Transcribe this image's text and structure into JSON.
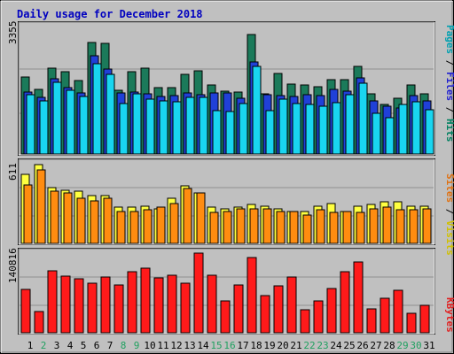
{
  "chart_data": [
    {
      "type": "bar",
      "title": "Daily usage for December 2018",
      "categories": [
        "1",
        "2",
        "3",
        "4",
        "5",
        "6",
        "7",
        "8",
        "9",
        "10",
        "11",
        "12",
        "13",
        "14",
        "15",
        "16",
        "17",
        "18",
        "19",
        "20",
        "21",
        "22",
        "23",
        "24",
        "25",
        "26",
        "27",
        "28",
        "29",
        "30",
        "31"
      ],
      "ylabel_max": "3355",
      "ylim": [
        0,
        3355
      ],
      "grid": true,
      "legend_right": [
        {
          "text": "Pages",
          "color": "#00a0b0"
        },
        {
          "text": " / ",
          "color": "#000000"
        },
        {
          "text": "Files",
          "color": "#2020d0"
        },
        {
          "text": " / ",
          "color": "#000000"
        },
        {
          "text": "Hits",
          "color": "#008060"
        }
      ],
      "series": [
        {
          "name": "Hits",
          "color": "#1b7a5a",
          "values": [
            1990,
            1670,
            2240,
            2140,
            1900,
            2900,
            2880,
            1660,
            2130,
            2240,
            1720,
            1730,
            2070,
            2150,
            1800,
            1640,
            1600,
            3110,
            1560,
            2090,
            1820,
            1790,
            1740,
            1920,
            1920,
            2280,
            1570,
            1280,
            1450,
            1790,
            1560
          ]
        },
        {
          "name": "Files",
          "color": "#2040d8",
          "values": [
            1620,
            1480,
            1960,
            1730,
            1580,
            2540,
            2210,
            1590,
            1620,
            1560,
            1500,
            1510,
            1580,
            1530,
            1580,
            1580,
            1440,
            2390,
            1550,
            1520,
            1500,
            1540,
            1510,
            1670,
            1640,
            1980,
            1390,
            1240,
            1200,
            1520,
            1380
          ]
        },
        {
          "name": "Pages",
          "color": "#19d5f0",
          "values": [
            1550,
            1380,
            1870,
            1650,
            1490,
            2340,
            2070,
            1320,
            1560,
            1430,
            1390,
            1350,
            1480,
            1470,
            1120,
            1100,
            1320,
            2270,
            1120,
            1420,
            1320,
            1290,
            1240,
            1330,
            1540,
            1840,
            1060,
            940,
            1280,
            1350,
            1140
          ]
        }
      ]
    },
    {
      "type": "bar",
      "categories": [
        "1",
        "2",
        "3",
        "4",
        "5",
        "6",
        "7",
        "8",
        "9",
        "10",
        "11",
        "12",
        "13",
        "14",
        "15",
        "16",
        "17",
        "18",
        "19",
        "20",
        "21",
        "22",
        "23",
        "24",
        "25",
        "26",
        "27",
        "28",
        "29",
        "30",
        "31"
      ],
      "ylabel_max": "611",
      "ylim": [
        0,
        611
      ],
      "grid": true,
      "legend_right": [
        {
          "text": "Sites",
          "color": "#e07010"
        },
        {
          "text": " / ",
          "color": "#000000"
        },
        {
          "text": "Visits",
          "color": "#d0c000"
        }
      ],
      "series": [
        {
          "name": "Visits",
          "color": "#ffff40",
          "values": [
            520,
            590,
            420,
            400,
            390,
            360,
            360,
            270,
            270,
            280,
            260,
            340,
            430,
            380,
            270,
            260,
            270,
            290,
            280,
            260,
            240,
            240,
            280,
            300,
            240,
            280,
            290,
            310,
            310,
            280,
            280
          ]
        },
        {
          "name": "Sites",
          "color": "#ff8c10",
          "values": [
            440,
            550,
            390,
            380,
            340,
            320,
            340,
            240,
            240,
            250,
            270,
            300,
            410,
            380,
            230,
            240,
            260,
            260,
            260,
            240,
            240,
            210,
            250,
            230,
            240,
            230,
            260,
            270,
            250,
            250,
            260
          ]
        }
      ]
    },
    {
      "type": "bar",
      "categories": [
        "1",
        "2",
        "3",
        "4",
        "5",
        "6",
        "7",
        "8",
        "9",
        "10",
        "11",
        "12",
        "13",
        "14",
        "15",
        "16",
        "17",
        "18",
        "19",
        "20",
        "21",
        "22",
        "23",
        "24",
        "25",
        "26",
        "27",
        "28",
        "29",
        "30",
        "31"
      ],
      "ylabel_max": "140816",
      "ylim": [
        0,
        140816
      ],
      "grid": true,
      "legend_right": [
        {
          "text": "KBytes",
          "color": "#e02020"
        }
      ],
      "series": [
        {
          "name": "KBytes",
          "color": "#ff1a1a",
          "values": [
            75000,
            37000,
            107000,
            98000,
            93000,
            85000,
            96000,
            82000,
            106000,
            112000,
            95000,
            99000,
            86000,
            137000,
            100000,
            55000,
            82000,
            130000,
            65000,
            81000,
            97000,
            40000,
            55000,
            76000,
            106000,
            123000,
            42000,
            59000,
            73000,
            33000,
            47000
          ]
        }
      ]
    }
  ],
  "day_colors": [
    "#006060",
    "#20a060"
  ],
  "weekend_days": [
    2,
    8,
    9,
    15,
    16,
    22,
    23,
    29,
    30
  ]
}
